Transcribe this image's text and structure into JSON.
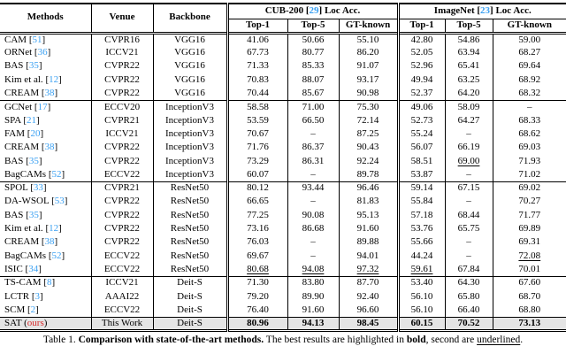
{
  "colors": {
    "ref_blue": "#3aa0f2",
    "ours_red": "#d92b2b",
    "highlight_row": "#e4e4e4"
  },
  "table": {
    "header": {
      "col_methods": "Methods",
      "col_venue": "Venue",
      "col_backbone": "Backbone",
      "group_cub": {
        "name": "CUB-200",
        "ref": "29",
        "metric": "Loc Acc."
      },
      "group_imagenet": {
        "name": "ImageNet",
        "ref": "23",
        "metric": "Loc Acc."
      },
      "subcolumns": [
        "Top-1",
        "Top-5",
        "GT-known"
      ]
    },
    "groups": [
      {
        "rows": [
          {
            "method": "CAM",
            "ref": "51",
            "venue": "CVPR16",
            "backbone": "VGG16",
            "values": [
              "41.06",
              "50.66",
              "55.10",
              "42.80",
              "54.86",
              "59.00"
            ]
          },
          {
            "method": "ORNet",
            "ref": "36",
            "venue": "ICCV21",
            "backbone": "VGG16",
            "values": [
              "67.73",
              "80.77",
              "86.20",
              "52.05",
              "63.94",
              "68.27"
            ]
          },
          {
            "method": "BAS",
            "ref": "35",
            "venue": "CVPR22",
            "backbone": "VGG16",
            "values": [
              "71.33",
              "85.33",
              "91.07",
              "52.96",
              "65.41",
              "69.64"
            ]
          },
          {
            "method": "Kim et al.",
            "ref": "12",
            "venue": "CVPR22",
            "backbone": "VGG16",
            "values": [
              "70.83",
              "88.07",
              "93.17",
              "49.94",
              "63.25",
              "68.92"
            ]
          },
          {
            "method": "CREAM",
            "ref": "38",
            "venue": "CVPR22",
            "backbone": "VGG16",
            "values": [
              "70.44",
              "85.67",
              "90.98",
              "52.37",
              "64.20",
              "68.32"
            ]
          }
        ]
      },
      {
        "rows": [
          {
            "method": "GCNet",
            "ref": "17",
            "venue": "ECCV20",
            "backbone": "InceptionV3",
            "values": [
              "58.58",
              "71.00",
              "75.30",
              "49.06",
              "58.09",
              "–"
            ]
          },
          {
            "method": "SPA",
            "ref": "21",
            "venue": "CVPR21",
            "backbone": "InceptionV3",
            "values": [
              "53.59",
              "66.50",
              "72.14",
              "52.73",
              "64.27",
              "68.33"
            ]
          },
          {
            "method": "FAM",
            "ref": "20",
            "venue": "ICCV21",
            "backbone": "InceptionV3",
            "values": [
              "70.67",
              "–",
              "87.25",
              "55.24",
              "–",
              "68.62"
            ]
          },
          {
            "method": "CREAM",
            "ref": "38",
            "venue": "CVPR22",
            "backbone": "InceptionV3",
            "values": [
              "71.76",
              "86.37",
              "90.43",
              "56.07",
              "66.19",
              "69.03"
            ]
          },
          {
            "method": "BAS",
            "ref": "35",
            "venue": "CVPR22",
            "backbone": "InceptionV3",
            "values": [
              "73.29",
              "86.31",
              "92.24",
              "58.51",
              "69.00",
              "71.93"
            ],
            "marks": [
              "",
              "",
              "",
              "",
              "u",
              ""
            ]
          },
          {
            "method": "BagCAMs",
            "ref": "52",
            "venue": "ECCV22",
            "backbone": "InceptionV3",
            "values": [
              "60.07",
              "–",
              "89.78",
              "53.87",
              "–",
              "71.02"
            ]
          }
        ]
      },
      {
        "rows": [
          {
            "method": "SPOL",
            "ref": "33",
            "venue": "CVPR21",
            "backbone": "ResNet50",
            "values": [
              "80.12",
              "93.44",
              "96.46",
              "59.14",
              "67.15",
              "69.02"
            ]
          },
          {
            "method": "DA-WSOL",
            "ref": "53",
            "venue": "CVPR22",
            "backbone": "ResNet50",
            "values": [
              "66.65",
              "–",
              "81.83",
              "55.84",
              "–",
              "70.27"
            ]
          },
          {
            "method": "BAS",
            "ref": "35",
            "venue": "CVPR22",
            "backbone": "ResNet50",
            "values": [
              "77.25",
              "90.08",
              "95.13",
              "57.18",
              "68.44",
              "71.77"
            ]
          },
          {
            "method": "Kim et al.",
            "ref": "12",
            "venue": "CVPR22",
            "backbone": "ResNet50",
            "values": [
              "73.16",
              "86.68",
              "91.60",
              "53.76",
              "65.75",
              "69.89"
            ]
          },
          {
            "method": "CREAM",
            "ref": "38",
            "venue": "CVPR22",
            "backbone": "ResNet50",
            "values": [
              "76.03",
              "–",
              "89.88",
              "55.66",
              "–",
              "69.31"
            ]
          },
          {
            "method": "BagCAMs",
            "ref": "52",
            "venue": "ECCV22",
            "backbone": "ResNet50",
            "values": [
              "69.67",
              "–",
              "94.01",
              "44.24",
              "–",
              "72.08"
            ],
            "marks": [
              "",
              "",
              "",
              "",
              "",
              "u"
            ]
          },
          {
            "method": "ISIC",
            "ref": "34",
            "venue": "ECCV22",
            "backbone": "ResNet50",
            "values": [
              "80.68",
              "94.08",
              "97.32",
              "59.61",
              "67.84",
              "70.01"
            ],
            "marks": [
              "u",
              "u",
              "u",
              "u",
              "",
              ""
            ]
          }
        ]
      },
      {
        "rows": [
          {
            "method": "TS-CAM",
            "ref": "8",
            "venue": "ICCV21",
            "backbone": "Deit-S",
            "values": [
              "71.30",
              "83.80",
              "87.70",
              "53.40",
              "64.30",
              "67.60"
            ]
          },
          {
            "method": "LCTR",
            "ref": "3",
            "venue": "AAAI22",
            "backbone": "Deit-S",
            "values": [
              "79.20",
              "89.90",
              "92.40",
              "56.10",
              "65.80",
              "68.70"
            ]
          },
          {
            "method": "SCM",
            "ref": "2",
            "venue": "ECCV22",
            "backbone": "Deit-S",
            "values": [
              "76.40",
              "91.60",
              "96.60",
              "56.10",
              "66.40",
              "68.80"
            ]
          }
        ]
      },
      {
        "highlight": true,
        "rows": [
          {
            "method": "SAT",
            "ours": "ours",
            "venue": "This Work",
            "backbone": "Deit-S",
            "values": [
              "80.96",
              "94.13",
              "98.45",
              "60.15",
              "70.52",
              "73.13"
            ],
            "marks": [
              "b",
              "b",
              "b",
              "b",
              "b",
              "b"
            ]
          }
        ]
      }
    ]
  },
  "caption": {
    "prefix": "Table 1. ",
    "title_bold": "Comparison with state-of-the-art methods.",
    "text1": " The best results are highlighted in ",
    "bold_word": "bold",
    "text2": ", second are ",
    "underline_word": "underlined",
    "suffix": "."
  }
}
